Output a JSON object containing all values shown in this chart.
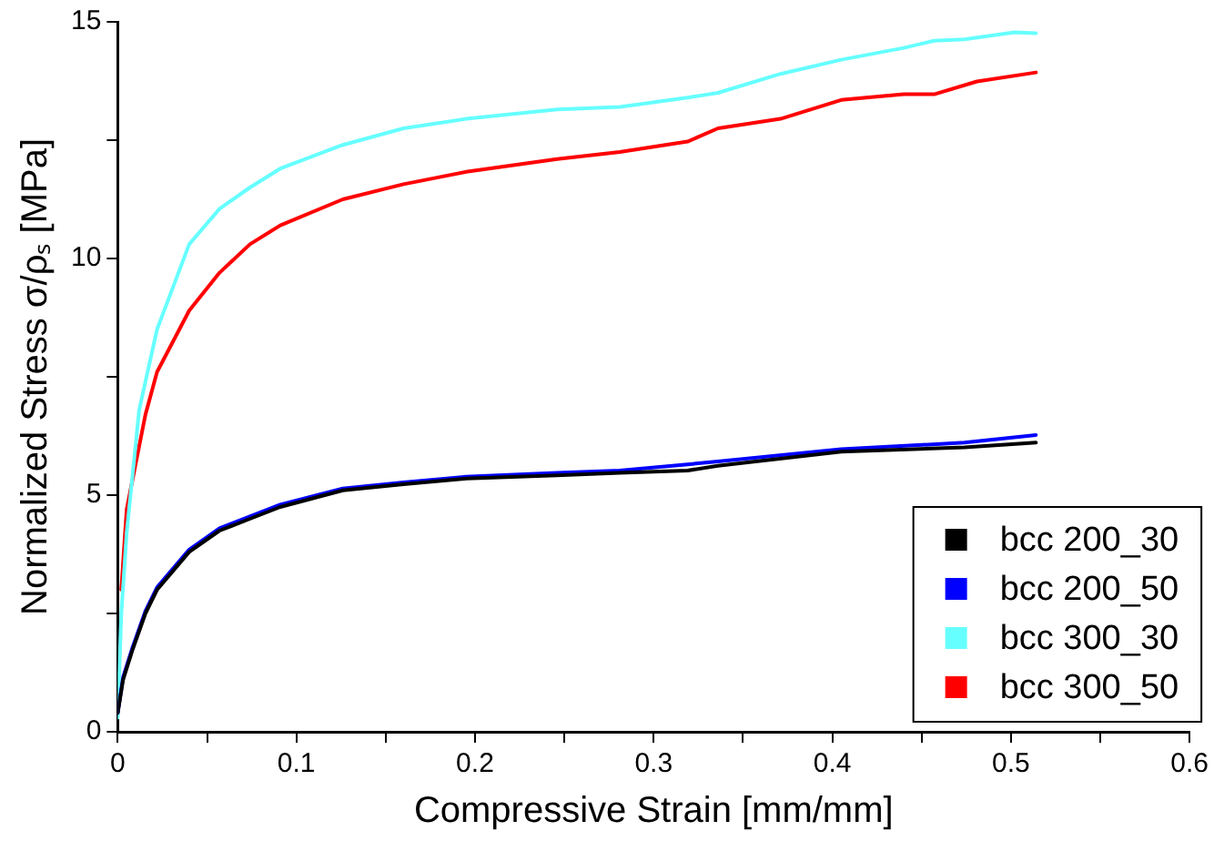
{
  "chart_data": {
    "type": "line",
    "xlabel": "Compressive Strain [mm/mm]",
    "ylabel": "Normalized Stress σ/ρₛ [MPa]",
    "xlim": [
      0,
      0.6
    ],
    "ylim": [
      0,
      15
    ],
    "xticks": [
      0,
      {
        "value": 0.05,
        "label": null
      },
      0.1,
      {
        "value": 0.15,
        "label": null
      },
      0.2,
      {
        "value": 0.25,
        "label": null
      },
      0.3,
      {
        "value": 0.35,
        "label": null
      },
      0.4,
      {
        "value": 0.45,
        "label": null
      },
      0.5,
      {
        "value": 0.55,
        "label": null
      },
      0.6
    ],
    "yticks": [
      0,
      {
        "value": 2.5,
        "label": null
      },
      5,
      {
        "value": 7.5,
        "label": null
      },
      10,
      {
        "value": 12.5,
        "label": null
      },
      15
    ],
    "grid": false,
    "legend": "bottom right",
    "marker": "none",
    "line_style": "solid",
    "series": [
      {
        "name": "bcc 200_30",
        "color": "#000000",
        "x": [
          0,
          0.003,
          0.008,
          0.0155,
          0.022,
          0.04,
          0.057,
          0.074,
          0.091,
          0.126,
          0.16,
          0.195,
          0.246,
          0.281,
          0.319,
          0.336,
          0.405,
          0.474,
          0.514
        ],
        "values": [
          0.4,
          1.1,
          1.7,
          2.5,
          3.0,
          3.8,
          4.25,
          4.5,
          4.75,
          5.1,
          5.23,
          5.35,
          5.42,
          5.47,
          5.52,
          5.62,
          5.92,
          6.01,
          6.11
        ]
      },
      {
        "name": "bcc 200_50",
        "color": "#0000ff",
        "x": [
          0,
          0.003,
          0.008,
          0.0155,
          0.022,
          0.04,
          0.057,
          0.074,
          0.091,
          0.126,
          0.16,
          0.195,
          0.246,
          0.281,
          0.319,
          0.336,
          0.405,
          0.474,
          0.514
        ],
        "values": [
          0.4,
          1.15,
          1.75,
          2.55,
          3.05,
          3.85,
          4.3,
          4.55,
          4.8,
          5.14,
          5.27,
          5.39,
          5.47,
          5.52,
          5.65,
          5.71,
          5.97,
          6.11,
          6.27
        ]
      },
      {
        "name": "bcc 300_30",
        "color": "#66ffff",
        "x": [
          0,
          0.002,
          0.005,
          0.012,
          0.022,
          0.04,
          0.057,
          0.074,
          0.091,
          0.126,
          0.16,
          0.195,
          0.246,
          0.281,
          0.319,
          0.336,
          0.371,
          0.405,
          0.44,
          0.457,
          0.474,
          0.502,
          0.514
        ],
        "values": [
          0.3,
          2.5,
          4.2,
          6.8,
          8.5,
          10.3,
          11.05,
          11.5,
          11.9,
          12.4,
          12.75,
          12.95,
          13.15,
          13.2,
          13.4,
          13.5,
          13.9,
          14.2,
          14.45,
          14.6,
          14.63,
          14.78,
          14.76
        ]
      },
      {
        "name": "bcc 300_50",
        "color": "#ff0000",
        "x": [
          0.002,
          0.005,
          0.0155,
          0.022,
          0.04,
          0.057,
          0.074,
          0.091,
          0.126,
          0.16,
          0.195,
          0.246,
          0.281,
          0.319,
          0.336,
          0.371,
          0.405,
          0.44,
          0.457,
          0.481,
          0.514
        ],
        "values": [
          3.0,
          4.7,
          6.7,
          7.6,
          8.9,
          9.7,
          10.3,
          10.7,
          11.25,
          11.57,
          11.83,
          12.1,
          12.25,
          12.47,
          12.75,
          12.95,
          13.35,
          13.47,
          13.47,
          13.74,
          13.93
        ]
      }
    ]
  }
}
